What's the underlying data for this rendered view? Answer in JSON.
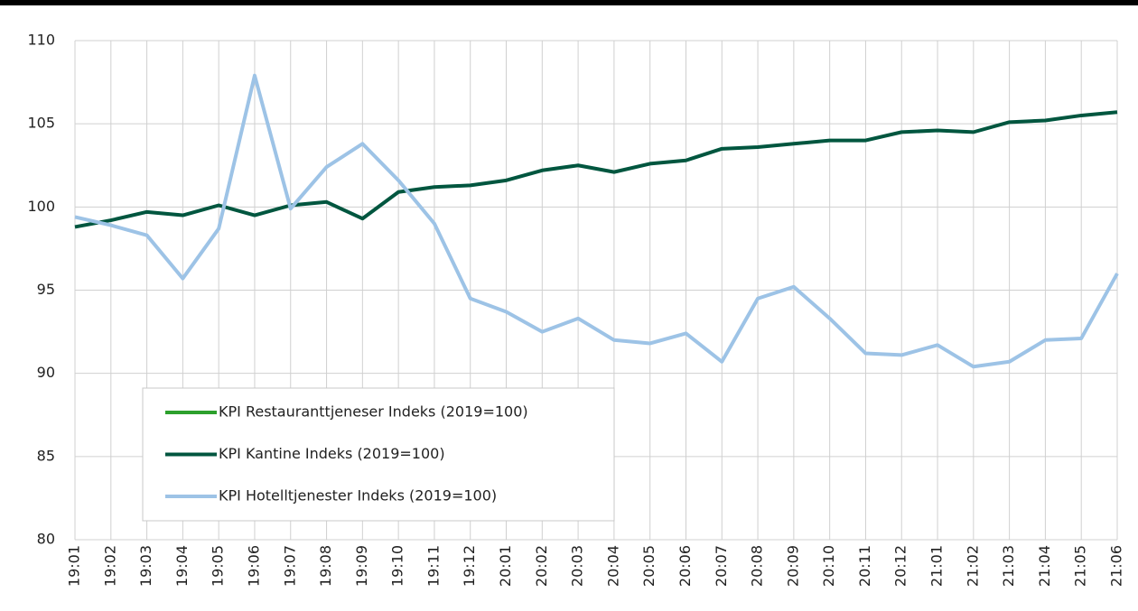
{
  "chart_data": {
    "type": "line",
    "categories": [
      "19:01",
      "19:02",
      "19:03",
      "19:04",
      "19:05",
      "19:06",
      "19:07",
      "19:08",
      "19:09",
      "19:10",
      "19:11",
      "19:12",
      "20:01",
      "20:02",
      "20:03",
      "20:04",
      "20:05",
      "20:06",
      "20:07",
      "20:08",
      "20:09",
      "20:10",
      "20:11",
      "20:12",
      "21:01",
      "21:02",
      "21:03",
      "21:04",
      "21:05",
      "21:06"
    ],
    "series": [
      {
        "name": "KPI Restauranttjeneser Indeks (2019=100)",
        "color": "#2ca02c",
        "values": [
          null,
          null,
          null,
          null,
          null,
          null,
          null,
          null,
          null,
          null,
          null,
          null,
          null,
          null,
          null,
          null,
          null,
          null,
          null,
          null,
          null,
          null,
          null,
          null,
          null,
          null,
          null,
          null,
          null,
          null
        ]
      },
      {
        "name": "KPI Kantine Indeks (2019=100)",
        "color": "#00563f",
        "values": [
          98.8,
          99.2,
          99.7,
          99.5,
          100.1,
          99.5,
          100.1,
          100.3,
          99.3,
          100.9,
          101.2,
          101.3,
          101.6,
          102.2,
          102.5,
          102.1,
          102.6,
          102.8,
          103.5,
          103.6,
          103.8,
          104.0,
          104.0,
          104.5,
          104.6,
          104.5,
          105.1,
          105.2,
          105.5,
          105.7
        ]
      },
      {
        "name": "KPI Hotelltjenester Indeks (2019=100)",
        "color": "#9dc3e6",
        "values": [
          99.4,
          98.9,
          98.3,
          95.7,
          98.7,
          107.9,
          99.9,
          102.4,
          103.8,
          101.6,
          99.0,
          94.5,
          93.7,
          92.5,
          93.3,
          92.0,
          91.8,
          92.4,
          90.7,
          94.5,
          95.2,
          93.3,
          91.2,
          91.1,
          91.7,
          90.4,
          90.7,
          92.0,
          92.1,
          96.0
        ]
      }
    ],
    "ylim": [
      80,
      110
    ],
    "yticks": [
      80,
      85,
      90,
      95,
      100,
      105,
      110
    ],
    "grid": true
  }
}
